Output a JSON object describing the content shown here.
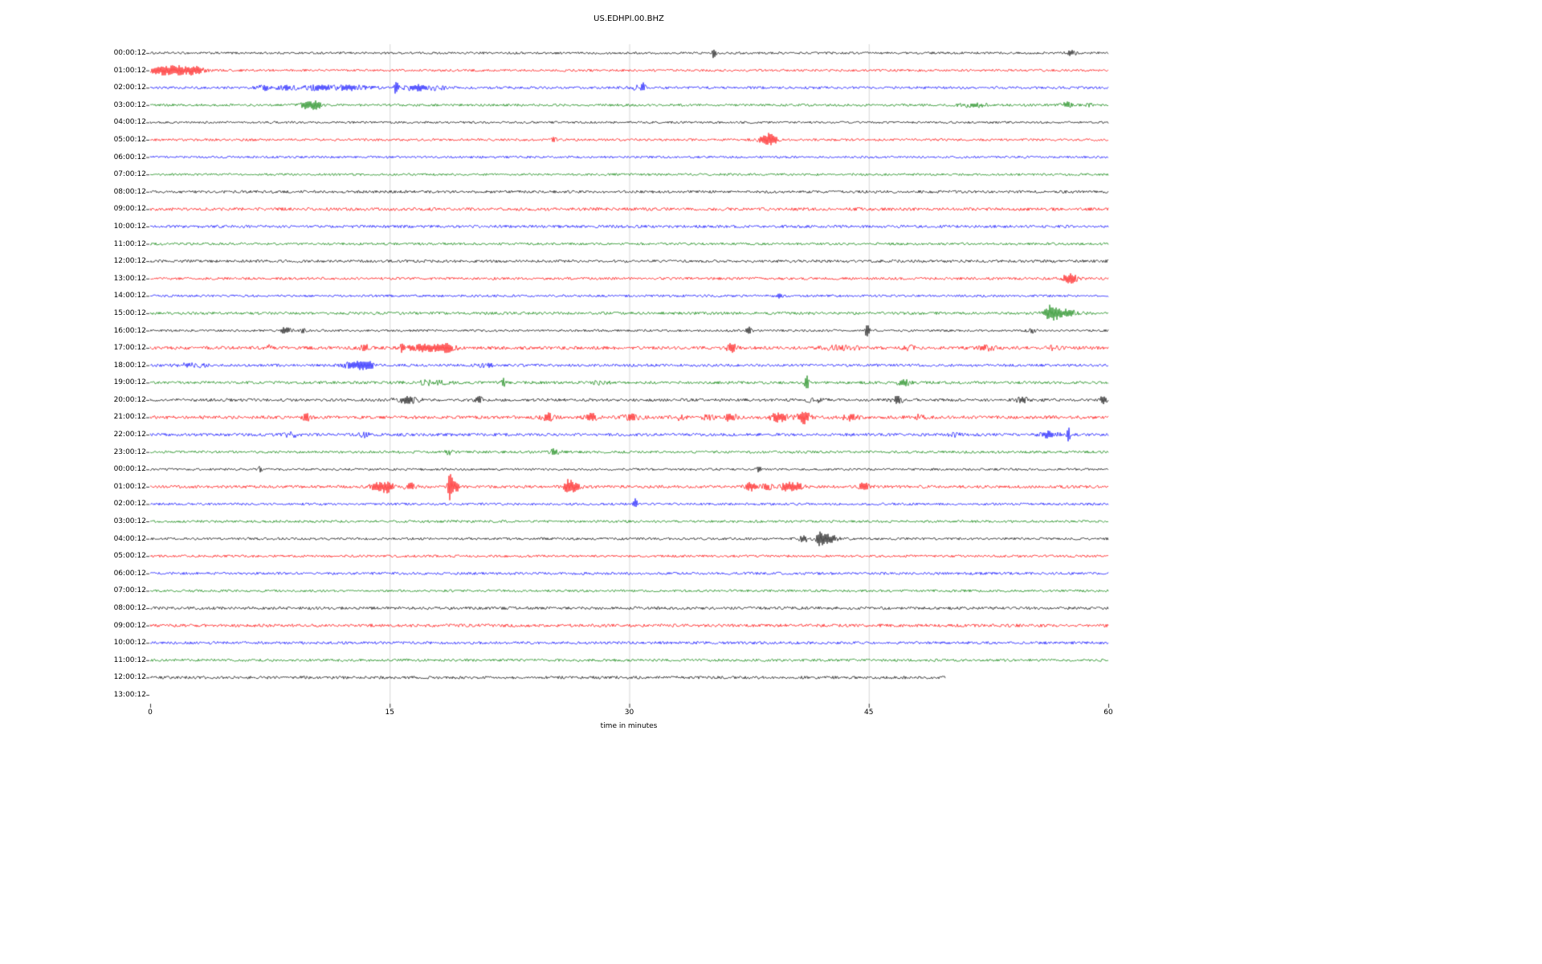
{
  "chart_data": {
    "type": "line",
    "subtype": "seismogram-dayplot",
    "title": "US.EDHPI.00.BHZ",
    "xlabel": "time in minutes",
    "xlim": [
      0,
      60
    ],
    "x_ticks": [
      0,
      15,
      30,
      45,
      60
    ],
    "grid_minutes": [
      15,
      30,
      45
    ],
    "grid_on": true,
    "legend": "none",
    "trace_color_cycle": [
      "#000000",
      "#ff0000",
      "#0000ff",
      "#008000"
    ],
    "seed": 1234,
    "rows": [
      {
        "label": "00:00:12",
        "color": "#000000",
        "noise": 1.4,
        "end": 60,
        "events": [
          [
            35.3,
            0.08,
            10
          ],
          [
            57.7,
            0.25,
            2.5
          ]
        ]
      },
      {
        "label": "01:00:12",
        "color": "#ff0000",
        "noise": 1.5,
        "end": 60,
        "events": [
          [
            0.7,
            0.5,
            5
          ],
          [
            1.6,
            0.3,
            4
          ],
          [
            2.6,
            0.5,
            5
          ]
        ]
      },
      {
        "label": "02:00:12",
        "color": "#0000ff",
        "noise": 1.6,
        "end": 60,
        "events": [
          [
            7.2,
            0.4,
            2.5
          ],
          [
            8.6,
            0.4,
            2.5
          ],
          [
            10.6,
            0.8,
            2.5
          ],
          [
            12.6,
            0.8,
            2.5
          ],
          [
            15.4,
            0.1,
            7
          ],
          [
            16.6,
            0.6,
            3
          ],
          [
            18.0,
            0.5,
            2
          ],
          [
            30.5,
            0.4,
            2
          ],
          [
            30.9,
            0.08,
            6
          ]
        ]
      },
      {
        "label": "03:00:12",
        "color": "#008000",
        "noise": 1.5,
        "end": 60,
        "events": [
          [
            9.9,
            0.35,
            5
          ],
          [
            10.5,
            0.25,
            3
          ],
          [
            51.6,
            0.6,
            2.5
          ],
          [
            57.4,
            0.25,
            3
          ],
          [
            58.8,
            0.15,
            2.5
          ]
        ]
      },
      {
        "label": "04:00:12",
        "color": "#000000",
        "noise": 1.4,
        "end": 60,
        "events": []
      },
      {
        "label": "05:00:12",
        "color": "#ff0000",
        "noise": 1.5,
        "end": 60,
        "events": [
          [
            25.3,
            0.15,
            2.5
          ],
          [
            38.4,
            0.3,
            3
          ],
          [
            38.9,
            0.25,
            7
          ]
        ]
      },
      {
        "label": "06:00:12",
        "color": "#0000ff",
        "noise": 1.4,
        "end": 60,
        "events": []
      },
      {
        "label": "07:00:12",
        "color": "#008000",
        "noise": 1.4,
        "end": 60,
        "events": []
      },
      {
        "label": "08:00:12",
        "color": "#000000",
        "noise": 1.7,
        "end": 60,
        "events": []
      },
      {
        "label": "09:00:12",
        "color": "#ff0000",
        "noise": 1.9,
        "end": 60,
        "events": []
      },
      {
        "label": "10:00:12",
        "color": "#0000ff",
        "noise": 1.7,
        "end": 60,
        "events": []
      },
      {
        "label": "11:00:12",
        "color": "#008000",
        "noise": 1.5,
        "end": 60,
        "events": []
      },
      {
        "label": "12:00:12",
        "color": "#000000",
        "noise": 1.7,
        "end": 60,
        "events": []
      },
      {
        "label": "13:00:12",
        "color": "#ff0000",
        "noise": 1.6,
        "end": 60,
        "events": [
          [
            57.6,
            0.35,
            5
          ]
        ]
      },
      {
        "label": "14:00:12",
        "color": "#0000ff",
        "noise": 1.5,
        "end": 60,
        "events": [
          [
            39.4,
            0.15,
            2.5
          ]
        ]
      },
      {
        "label": "15:00:12",
        "color": "#008000",
        "noise": 1.7,
        "end": 60,
        "events": [
          [
            56.4,
            0.3,
            9
          ],
          [
            57.3,
            0.6,
            4
          ]
        ]
      },
      {
        "label": "16:00:12",
        "color": "#000000",
        "noise": 1.4,
        "end": 60,
        "events": [
          [
            8.5,
            0.25,
            3.5
          ],
          [
            9.6,
            0.15,
            2.5
          ],
          [
            37.5,
            0.15,
            3.5
          ],
          [
            44.9,
            0.1,
            7
          ],
          [
            55.2,
            0.2,
            2.5
          ]
        ]
      },
      {
        "label": "17:00:12",
        "color": "#ff0000",
        "noise": 2.0,
        "end": 60,
        "events": [
          [
            7.4,
            0.2,
            2.5
          ],
          [
            13.5,
            0.25,
            3.5
          ],
          [
            15.8,
            0.1,
            5
          ],
          [
            17.1,
            0.9,
            3.5
          ],
          [
            18.6,
            0.4,
            3.5
          ],
          [
            36.4,
            0.25,
            4.5
          ],
          [
            43.3,
            0.8,
            2.5
          ],
          [
            47.6,
            0.3,
            2.5
          ],
          [
            52.4,
            0.4,
            2.5
          ],
          [
            56.5,
            0.3,
            2
          ]
        ]
      },
      {
        "label": "18:00:12",
        "color": "#0000ff",
        "noise": 1.7,
        "end": 60,
        "events": [
          [
            2.6,
            0.6,
            2.5
          ],
          [
            12.9,
            0.7,
            3.5
          ],
          [
            13.6,
            0.3,
            3.5
          ],
          [
            21.0,
            0.4,
            2
          ]
        ]
      },
      {
        "label": "19:00:12",
        "color": "#008000",
        "noise": 1.7,
        "end": 60,
        "events": [
          [
            17.6,
            0.8,
            2.5
          ],
          [
            22.1,
            0.1,
            4.5
          ],
          [
            28.0,
            0.5,
            2
          ],
          [
            41.1,
            0.08,
            13
          ],
          [
            47.2,
            0.3,
            3.5
          ]
        ]
      },
      {
        "label": "20:00:12",
        "color": "#000000",
        "noise": 1.8,
        "end": 60,
        "events": [
          [
            16.1,
            0.5,
            3.5
          ],
          [
            20.6,
            0.15,
            3.5
          ],
          [
            41.6,
            0.4,
            2.5
          ],
          [
            46.8,
            0.25,
            3.5
          ],
          [
            54.6,
            0.25,
            3.5
          ],
          [
            59.7,
            0.2,
            4.5
          ]
        ]
      },
      {
        "label": "21:00:12",
        "color": "#ff0000",
        "noise": 2.0,
        "end": 60,
        "events": [
          [
            9.8,
            0.25,
            3.5
          ],
          [
            24.9,
            0.25,
            4.5
          ],
          [
            27.6,
            0.25,
            4.5
          ],
          [
            30.1,
            0.4,
            3.5
          ],
          [
            33.1,
            0.25,
            2.5
          ],
          [
            35.0,
            0.3,
            3
          ],
          [
            36.3,
            0.3,
            4.5
          ],
          [
            39.4,
            0.4,
            5
          ],
          [
            40.9,
            0.3,
            7
          ],
          [
            43.9,
            0.4,
            3.5
          ],
          [
            48.1,
            0.25,
            2.5
          ]
        ]
      },
      {
        "label": "22:00:12",
        "color": "#0000ff",
        "noise": 1.8,
        "end": 60,
        "events": [
          [
            8.8,
            0.4,
            2.5
          ],
          [
            13.4,
            0.25,
            2.5
          ],
          [
            50.3,
            0.25,
            2.5
          ],
          [
            56.3,
            0.4,
            3.5
          ],
          [
            57.5,
            0.08,
            8
          ]
        ]
      },
      {
        "label": "23:00:12",
        "color": "#008000",
        "noise": 1.6,
        "end": 60,
        "events": [
          [
            18.7,
            0.25,
            2.5
          ],
          [
            25.3,
            0.25,
            3
          ]
        ]
      },
      {
        "label": "00:00:12",
        "color": "#000000",
        "noise": 1.4,
        "end": 60,
        "events": [
          [
            6.9,
            0.1,
            3.5
          ],
          [
            38.1,
            0.15,
            2.5
          ]
        ]
      },
      {
        "label": "01:00:12",
        "color": "#ff0000",
        "noise": 1.8,
        "end": 60,
        "events": [
          [
            14.3,
            0.4,
            4.5
          ],
          [
            14.9,
            0.25,
            5
          ],
          [
            16.3,
            0.3,
            3.5
          ],
          [
            18.8,
            0.09,
            24
          ],
          [
            19.1,
            0.25,
            5
          ],
          [
            26.2,
            0.2,
            8
          ],
          [
            26.6,
            0.3,
            4.5
          ],
          [
            37.6,
            0.3,
            4.5
          ],
          [
            38.6,
            0.25,
            3.5
          ],
          [
            39.9,
            0.3,
            5
          ],
          [
            40.6,
            0.25,
            3.5
          ],
          [
            44.7,
            0.3,
            4.5
          ]
        ]
      },
      {
        "label": "02:00:12",
        "color": "#0000ff",
        "noise": 1.5,
        "end": 60,
        "events": [
          [
            30.4,
            0.09,
            6
          ]
        ]
      },
      {
        "label": "03:00:12",
        "color": "#008000",
        "noise": 1.5,
        "end": 60,
        "events": []
      },
      {
        "label": "04:00:12",
        "color": "#000000",
        "noise": 1.5,
        "end": 60,
        "events": [
          [
            40.9,
            0.25,
            3.5
          ],
          [
            42.0,
            0.2,
            9
          ],
          [
            42.6,
            0.3,
            4.5
          ]
        ]
      },
      {
        "label": "05:00:12",
        "color": "#ff0000",
        "noise": 1.5,
        "end": 60,
        "events": []
      },
      {
        "label": "06:00:12",
        "color": "#0000ff",
        "noise": 1.6,
        "end": 60,
        "events": []
      },
      {
        "label": "07:00:12",
        "color": "#008000",
        "noise": 1.5,
        "end": 60,
        "events": []
      },
      {
        "label": "08:00:12",
        "color": "#000000",
        "noise": 1.8,
        "end": 60,
        "events": []
      },
      {
        "label": "09:00:12",
        "color": "#ff0000",
        "noise": 1.9,
        "end": 60,
        "events": []
      },
      {
        "label": "10:00:12",
        "color": "#0000ff",
        "noise": 1.7,
        "end": 60,
        "events": []
      },
      {
        "label": "11:00:12",
        "color": "#008000",
        "noise": 1.6,
        "end": 60,
        "events": []
      },
      {
        "label": "12:00:12",
        "color": "#000000",
        "noise": 1.8,
        "end": 49.8,
        "events": []
      },
      {
        "label": "13:00:12",
        "color": "#000000",
        "noise": 0,
        "end": 0,
        "events": []
      }
    ]
  }
}
